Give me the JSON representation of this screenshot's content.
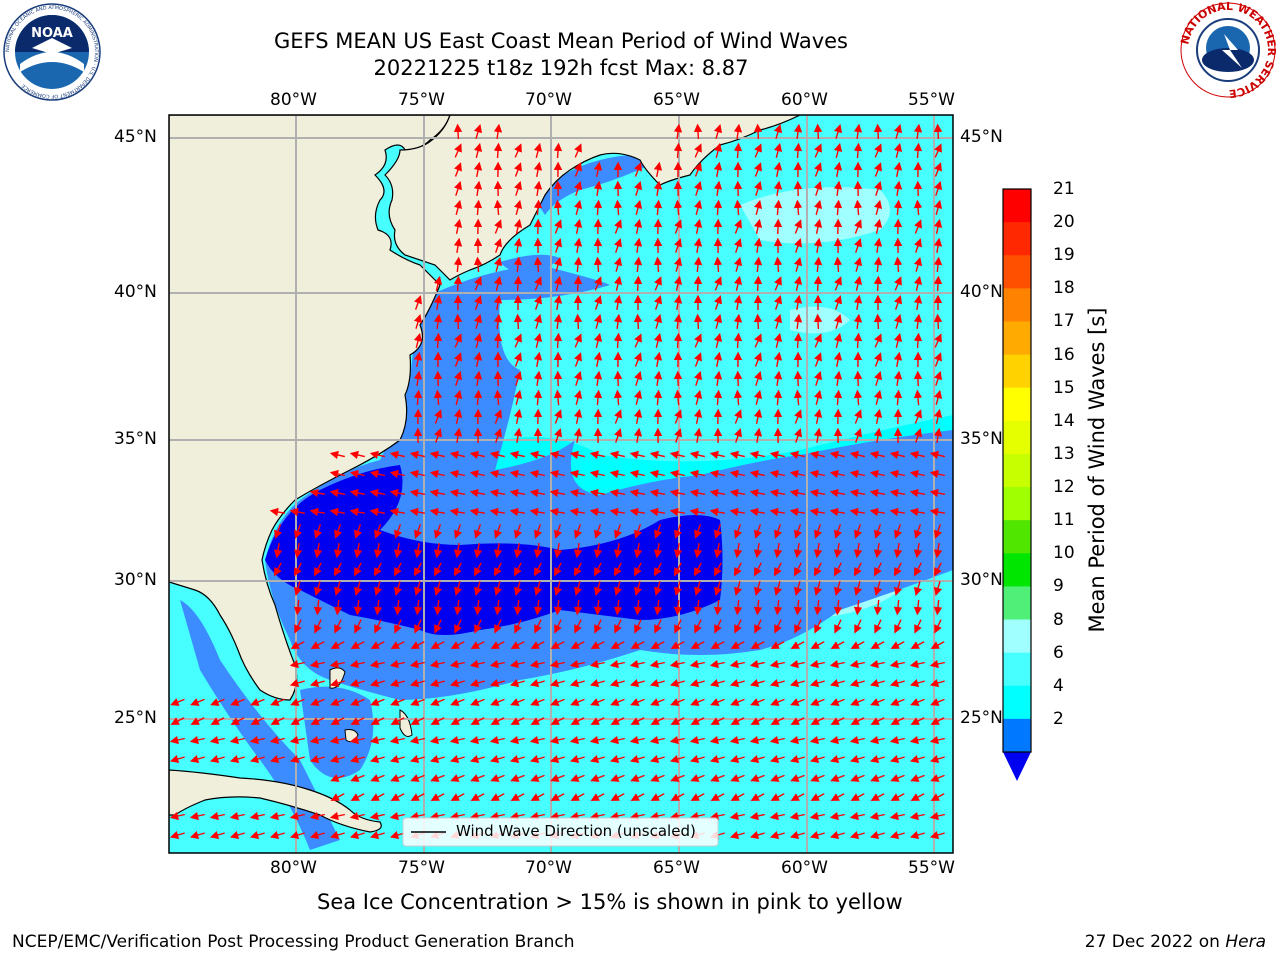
{
  "header": {
    "title_line1": "GEFS MEAN US East Coast Mean Period of Wind Waves",
    "title_line2": "20221225 t18z 192h fcst   Max: 8.87"
  },
  "logos": {
    "left": "NOAA",
    "left_ring_text": "NATIONAL OCEANIC AND ATMOSPHERIC ADMINISTRATION · U.S. DEPARTMENT OF COMMERCE",
    "right_ring_text": "NATIONAL WEATHER SERVICE"
  },
  "map": {
    "lon_labels": [
      "80°W",
      "75°W",
      "70°W",
      "65°W",
      "60°W",
      "55°W"
    ],
    "lat_labels": [
      "45°N",
      "40°N",
      "35°N",
      "30°N",
      "25°N"
    ],
    "legend_label": "Wind Wave Direction (unscaled)",
    "colors": {
      "land": "#efefdc",
      "water_2_4": "#3c8cff",
      "water_lt2": "#0000f0",
      "water_4_6": "#00ffff",
      "water_6_8": "#48ffff",
      "water_8_9": "#a0ffff",
      "arrows": "#ff0000",
      "grid": "#b0b0b0"
    }
  },
  "colorbar": {
    "title": "Mean Period of Wind Waves [s]",
    "ticks": [
      "21",
      "20",
      "19",
      "18",
      "17",
      "16",
      "15",
      "14",
      "13",
      "12",
      "11",
      "10",
      "9",
      "8",
      "6",
      "4",
      "2"
    ],
    "colors": [
      "#ff0000",
      "#ff2800",
      "#ff5000",
      "#ff8200",
      "#ffaa00",
      "#ffd200",
      "#ffff00",
      "#e6ff00",
      "#c8ff00",
      "#a0ff00",
      "#50e600",
      "#00e600",
      "#50f078",
      "#a0ffff",
      "#48ffff",
      "#00ffff",
      "#0078ff"
    ],
    "under_color": "#0000f0"
  },
  "footer": {
    "ice_note": "Sea Ice Concentration > 15% is shown in pink to yellow",
    "left": "NCEP/EMC/Verification Post Processing Product Generation Branch",
    "date": "27 Dec 2022 on",
    "machine": "Hera"
  }
}
